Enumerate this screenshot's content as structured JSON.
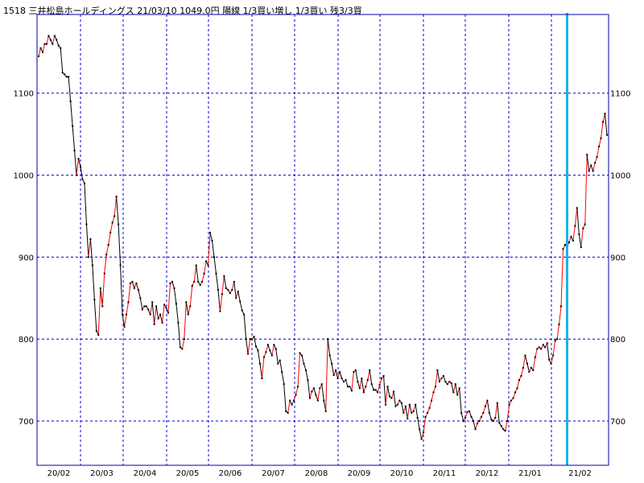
{
  "header": {
    "text": "1518 三井松島ホールディングス 21/03/10 1049.0円 陽線 1/3買い増し 1/3買い 残3/3買"
  },
  "colors": {
    "background": "#ffffff",
    "grid": "#0000cc",
    "frame": "#0000aa",
    "down_segment": "#000000",
    "up_segment": "#ff0000",
    "marker_line": "#19b2e6"
  },
  "chart_data": {
    "type": "line",
    "title": "",
    "xlabel": "",
    "ylabel": "",
    "ylim": [
      646,
      1196
    ],
    "y_ticks": [
      700,
      800,
      900,
      1000,
      1100
    ],
    "y_tick_labels": [
      "700",
      "800",
      "900",
      "1000",
      "1100"
    ],
    "x_ticks": [
      "20/02",
      "20/03",
      "20/04",
      "20/05",
      "20/06",
      "20/07",
      "20/08",
      "20/09",
      "20/10",
      "20/11",
      "20/12",
      "21/01",
      "21/02"
    ],
    "grid": true,
    "marker_line_index": 265,
    "series": [
      {
        "values": [
          1145,
          1155,
          1150,
          1160,
          1160,
          1170,
          1165,
          1160,
          1170,
          1165,
          1158,
          1155,
          1125,
          1123,
          1120,
          1120,
          1090,
          1060,
          1030,
          1000,
          1020,
          1010,
          995,
          990,
          940,
          900,
          922,
          890,
          848,
          810,
          805,
          862,
          840,
          880,
          903,
          915,
          930,
          942,
          950,
          974,
          940,
          890,
          830,
          815,
          830,
          845,
          868,
          870,
          862,
          868,
          860,
          850,
          836,
          840,
          840,
          836,
          830,
          845,
          818,
          840,
          825,
          830,
          820,
          842,
          838,
          832,
          868,
          870,
          862,
          843,
          820,
          790,
          788,
          800,
          845,
          830,
          840,
          865,
          870,
          890,
          870,
          866,
          870,
          880,
          895,
          890,
          930,
          920,
          900,
          880,
          860,
          834,
          855,
          877,
          862,
          860,
          856,
          860,
          870,
          850,
          858,
          846,
          835,
          830,
          800,
          782,
          800,
          800,
          803,
          791,
          786,
          770,
          752,
          778,
          784,
          793,
          786,
          780,
          793,
          788,
          770,
          774,
          760,
          745,
          712,
          710,
          725,
          720,
          725,
          732,
          742,
          783,
          780,
          770,
          762,
          750,
          728,
          736,
          740,
          732,
          725,
          740,
          745,
          725,
          712,
          800,
          780,
          770,
          756,
          762,
          752,
          760,
          752,
          748,
          750,
          742,
          742,
          737,
          760,
          762,
          748,
          740,
          752,
          735,
          742,
          750,
          762,
          745,
          738,
          738,
          735,
          744,
          752,
          755,
          720,
          742,
          730,
          728,
          736,
          718,
          720,
          725,
          722,
          710,
          718,
          703,
          720,
          710,
          712,
          720,
          704,
          690,
          678,
          686,
          705,
          710,
          716,
          725,
          735,
          742,
          762,
          748,
          752,
          755,
          748,
          745,
          748,
          746,
          735,
          745,
          732,
          740,
          710,
          700,
          704,
          711,
          712,
          705,
          700,
          690,
          697,
          700,
          705,
          710,
          718,
          725,
          710,
          702,
          700,
          704,
          722,
          698,
          694,
          690,
          688,
          700,
          720,
          725,
          728,
          735,
          740,
          750,
          755,
          765,
          780,
          770,
          760,
          765,
          762,
          778,
          788,
          790,
          788,
          793,
          790,
          795,
          775,
          770,
          780,
          798,
          800,
          818,
          840,
          910,
          915,
          912,
          918,
          925,
          920,
          938,
          960,
          928,
          912,
          935,
          940,
          1025,
          1005,
          1012,
          1005,
          1015,
          1022,
          1035,
          1045,
          1065,
          1075,
          1049
        ]
      }
    ]
  }
}
